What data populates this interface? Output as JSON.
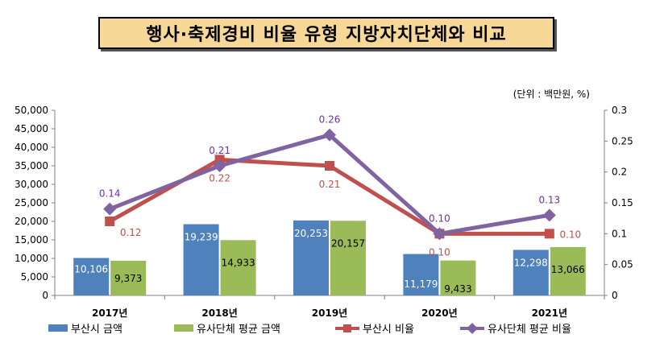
{
  "title": "행사·축제경비 비율 유형 지방자치단체와 비교",
  "unit_note": "(단위 : 백만원, %)",
  "colors": {
    "busan_amount": "#4f81bd",
    "avg_amount": "#9bbb59",
    "busan_ratio": "#c0504d",
    "avg_ratio": "#8064a2",
    "ratio_label_red": "#c0504d",
    "ratio_label_purple": "#7030a0"
  },
  "chart_data": {
    "type": "bar",
    "categories": [
      "2017년",
      "2018년",
      "2019년",
      "2020년",
      "2021년"
    ],
    "series": [
      {
        "name": "부산시 금액",
        "kind": "bar",
        "axis": "left",
        "values": [
          10106,
          19239,
          20253,
          11179,
          12298
        ],
        "labels": [
          "10,106",
          "19,239",
          "20,253",
          "11,179",
          "12,298"
        ]
      },
      {
        "name": "유사단체 평균 금액",
        "kind": "bar",
        "axis": "left",
        "values": [
          9373,
          14933,
          20157,
          9433,
          13066
        ],
        "labels": [
          "9,373",
          "14,933",
          "20,157",
          "9,433",
          "13,066"
        ]
      },
      {
        "name": "부산시 비율",
        "kind": "line",
        "axis": "right",
        "values": [
          0.12,
          0.22,
          0.21,
          0.1,
          0.1
        ],
        "labels": [
          "0.12",
          "0.22",
          "0.21",
          "0.10",
          "0.10"
        ]
      },
      {
        "name": "유사단체 평균 비율",
        "kind": "line",
        "axis": "right",
        "values": [
          0.14,
          0.21,
          0.26,
          0.1,
          0.13
        ],
        "labels": [
          "0.14",
          "0.21",
          "0.26",
          "0.10",
          "0.13"
        ]
      }
    ],
    "y_left": {
      "min": 0,
      "max": 50000,
      "ticks": [
        "0",
        "5,000",
        "10,000",
        "15,000",
        "20,000",
        "25,000",
        "30,000",
        "35,000",
        "40,000",
        "45,000",
        "50,000"
      ]
    },
    "y_right": {
      "min": 0,
      "max": 0.3,
      "ticks": [
        "0",
        "0.05",
        "0.1",
        "0.15",
        "0.2",
        "0.25",
        "0.3"
      ]
    },
    "grid": false,
    "legend_position": "bottom"
  }
}
